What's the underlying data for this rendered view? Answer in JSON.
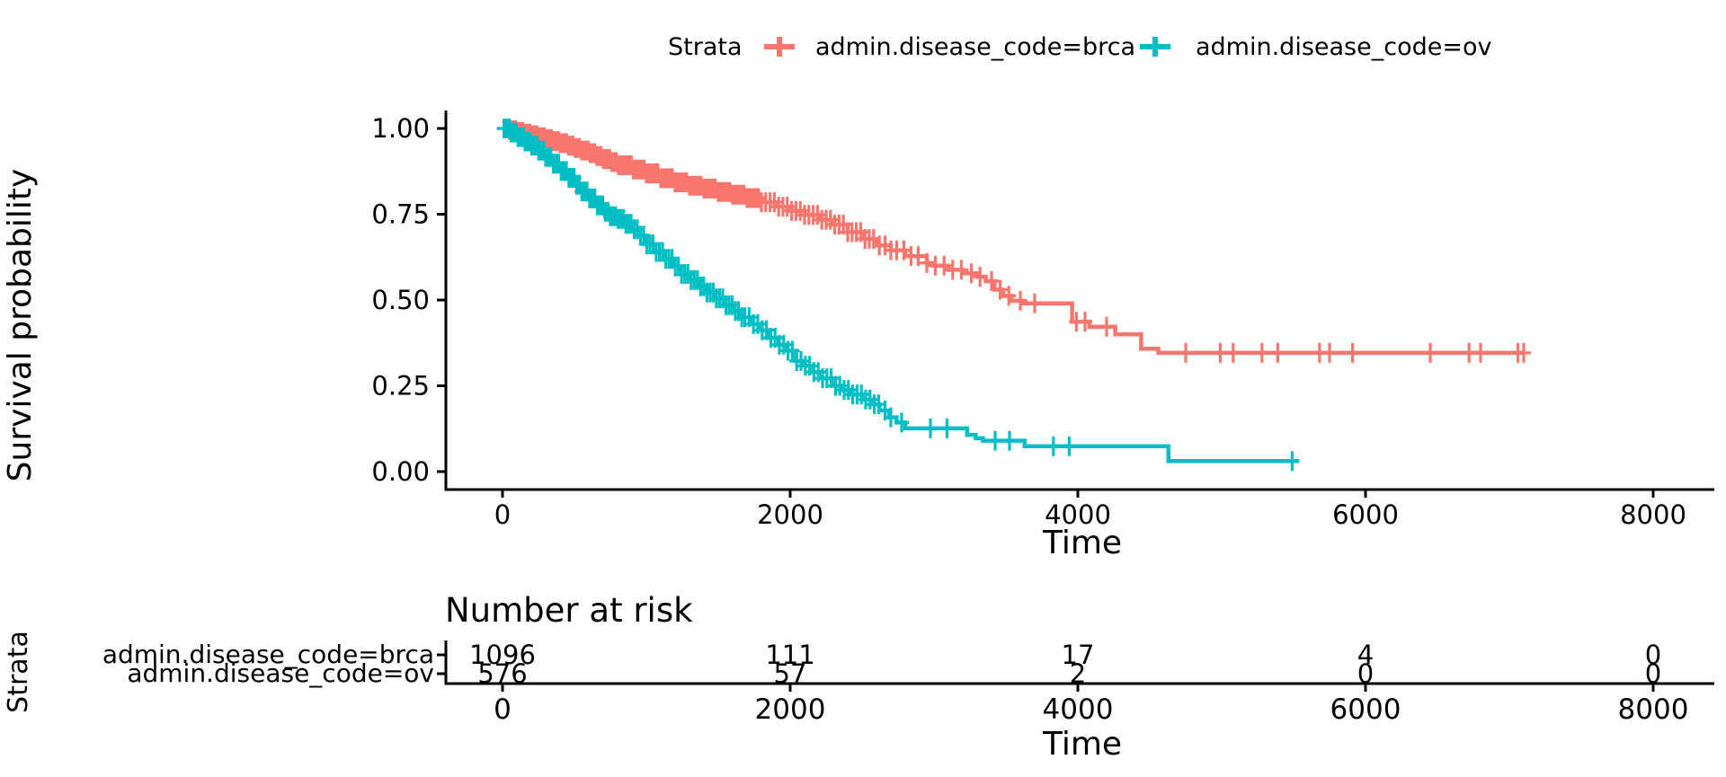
{
  "chart_data": {
    "type": "line",
    "subtype": "kaplan_meier_survival",
    "title": "",
    "xlabel": "Time",
    "ylabel": "Survival probability",
    "grid": false,
    "legend_position": "top",
    "legend_title": "Strata",
    "xlim": [
      -400,
      8450
    ],
    "ylim": [
      -0.05,
      1.05
    ],
    "xticks": {
      "values": [
        0,
        2000,
        4000,
        6000,
        8000
      ],
      "labels": [
        "0",
        "2000",
        "4000",
        "6000",
        "8000"
      ]
    },
    "yticks": {
      "values": [
        0,
        0.25,
        0.5,
        0.75,
        1
      ],
      "labels": [
        "0.00",
        "0.25",
        "0.50",
        "0.75",
        "1.00"
      ]
    },
    "censor_shape": "plus",
    "series": [
      {
        "name": "admin.disease_code=brca",
        "color": "#F8766D",
        "points": [
          [
            0,
            1.0
          ],
          [
            50,
            0.995
          ],
          [
            100,
            0.99
          ],
          [
            150,
            0.985
          ],
          [
            200,
            0.98
          ],
          [
            250,
            0.9745
          ],
          [
            300,
            0.969
          ],
          [
            350,
            0.963
          ],
          [
            400,
            0.957
          ],
          [
            450,
            0.95
          ],
          [
            500,
            0.943
          ],
          [
            550,
            0.9355
          ],
          [
            600,
            0.928
          ],
          [
            650,
            0.92
          ],
          [
            700,
            0.911
          ],
          [
            750,
            0.902
          ],
          [
            800,
            0.893
          ],
          [
            900,
            0.88
          ],
          [
            1000,
            0.869
          ],
          [
            1100,
            0.855
          ],
          [
            1200,
            0.843
          ],
          [
            1300,
            0.833
          ],
          [
            1400,
            0.825
          ],
          [
            1500,
            0.815
          ],
          [
            1600,
            0.807
          ],
          [
            1700,
            0.797
          ],
          [
            1800,
            0.785
          ],
          [
            1900,
            0.772
          ],
          [
            2000,
            0.76
          ],
          [
            2100,
            0.748
          ],
          [
            2200,
            0.734
          ],
          [
            2300,
            0.72
          ],
          [
            2400,
            0.698
          ],
          [
            2500,
            0.678
          ],
          [
            2600,
            0.659
          ],
          [
            2700,
            0.645
          ],
          [
            2800,
            0.628
          ],
          [
            2950,
            0.608
          ],
          [
            3000,
            0.6
          ],
          [
            3100,
            0.588
          ],
          [
            3200,
            0.578
          ],
          [
            3300,
            0.568
          ],
          [
            3360,
            0.555
          ],
          [
            3420,
            0.53
          ],
          [
            3480,
            0.512
          ],
          [
            3540,
            0.498
          ],
          [
            3620,
            0.49
          ],
          [
            3960,
            0.437
          ],
          [
            4080,
            0.422
          ],
          [
            4260,
            0.4
          ],
          [
            4440,
            0.358
          ],
          [
            4560,
            0.346
          ],
          [
            7100,
            0.346
          ]
        ],
        "censor_times": [
          10,
          20,
          30,
          40,
          50,
          60,
          70,
          80,
          90,
          100,
          110,
          120,
          130,
          140,
          150,
          160,
          170,
          180,
          190,
          200,
          210,
          220,
          230,
          240,
          250,
          260,
          270,
          280,
          290,
          300,
          310,
          320,
          330,
          340,
          350,
          360,
          370,
          380,
          390,
          400,
          415,
          430,
          445,
          460,
          475,
          490,
          505,
          520,
          535,
          550,
          565,
          580,
          595,
          610,
          625,
          640,
          655,
          670,
          685,
          700,
          715,
          730,
          745,
          760,
          775,
          790,
          805,
          820,
          835,
          850,
          865,
          880,
          895,
          910,
          925,
          940,
          955,
          970,
          985,
          1000,
          1020,
          1040,
          1060,
          1080,
          1100,
          1120,
          1140,
          1160,
          1180,
          1200,
          1220,
          1240,
          1260,
          1280,
          1300,
          1320,
          1340,
          1360,
          1380,
          1400,
          1420,
          1440,
          1460,
          1480,
          1500,
          1520,
          1540,
          1560,
          1580,
          1600,
          1620,
          1640,
          1660,
          1680,
          1700,
          1720,
          1740,
          1760,
          1780,
          1800,
          1830,
          1860,
          1890,
          1920,
          1950,
          1980,
          2010,
          2040,
          2070,
          2100,
          2130,
          2160,
          2190,
          2220,
          2250,
          2280,
          2310,
          2340,
          2370,
          2400,
          2430,
          2460,
          2490,
          2520,
          2550,
          2580,
          2620,
          2660,
          2700,
          2740,
          2790,
          2840,
          2890,
          2950,
          3010,
          3070,
          3130,
          3190,
          3260,
          3320,
          3400,
          3460,
          3520,
          3600,
          3700,
          3990,
          4050,
          4200,
          4750,
          4990,
          5080,
          5280,
          5390,
          5680,
          5750,
          5910,
          6450,
          6720,
          6800,
          7060,
          7100
        ]
      },
      {
        "name": "admin.disease_code=ov",
        "color": "#00BFC4",
        "points": [
          [
            0,
            1.0
          ],
          [
            50,
            0.988
          ],
          [
            100,
            0.975
          ],
          [
            150,
            0.962
          ],
          [
            200,
            0.95
          ],
          [
            250,
            0.935
          ],
          [
            300,
            0.917
          ],
          [
            350,
            0.897
          ],
          [
            400,
            0.876
          ],
          [
            450,
            0.856
          ],
          [
            500,
            0.836
          ],
          [
            550,
            0.816
          ],
          [
            600,
            0.796
          ],
          [
            650,
            0.776
          ],
          [
            700,
            0.757
          ],
          [
            750,
            0.744
          ],
          [
            800,
            0.736
          ],
          [
            850,
            0.722
          ],
          [
            900,
            0.706
          ],
          [
            950,
            0.688
          ],
          [
            1000,
            0.662
          ],
          [
            1060,
            0.64
          ],
          [
            1120,
            0.62
          ],
          [
            1180,
            0.598
          ],
          [
            1240,
            0.576
          ],
          [
            1300,
            0.558
          ],
          [
            1360,
            0.54
          ],
          [
            1420,
            0.522
          ],
          [
            1480,
            0.505
          ],
          [
            1540,
            0.485
          ],
          [
            1600,
            0.468
          ],
          [
            1660,
            0.45
          ],
          [
            1720,
            0.43
          ],
          [
            1780,
            0.412
          ],
          [
            1850,
            0.39
          ],
          [
            1920,
            0.37
          ],
          [
            1980,
            0.352
          ],
          [
            2040,
            0.322
          ],
          [
            2100,
            0.308
          ],
          [
            2160,
            0.29
          ],
          [
            2220,
            0.272
          ],
          [
            2290,
            0.25
          ],
          [
            2360,
            0.238
          ],
          [
            2430,
            0.225
          ],
          [
            2500,
            0.21
          ],
          [
            2560,
            0.196
          ],
          [
            2620,
            0.178
          ],
          [
            2690,
            0.158
          ],
          [
            2740,
            0.143
          ],
          [
            2800,
            0.126
          ],
          [
            3230,
            0.107
          ],
          [
            3290,
            0.097
          ],
          [
            3340,
            0.09
          ],
          [
            3630,
            0.074
          ],
          [
            4630,
            0.031
          ],
          [
            5538,
            0.031
          ]
        ],
        "censor_times": [
          12,
          24,
          36,
          48,
          60,
          72,
          84,
          96,
          108,
          120,
          132,
          144,
          156,
          168,
          180,
          192,
          204,
          216,
          228,
          240,
          252,
          264,
          276,
          288,
          300,
          318,
          336,
          354,
          372,
          390,
          408,
          426,
          444,
          462,
          480,
          498,
          516,
          534,
          552,
          570,
          588,
          606,
          624,
          642,
          660,
          678,
          696,
          714,
          732,
          750,
          768,
          786,
          804,
          822,
          840,
          858,
          876,
          894,
          915,
          937,
          959,
          981,
          1003,
          1025,
          1047,
          1069,
          1091,
          1113,
          1135,
          1157,
          1179,
          1201,
          1223,
          1245,
          1267,
          1289,
          1311,
          1333,
          1355,
          1377,
          1399,
          1421,
          1443,
          1465,
          1487,
          1509,
          1531,
          1553,
          1575,
          1597,
          1619,
          1641,
          1663,
          1685,
          1715,
          1745,
          1775,
          1805,
          1835,
          1865,
          1895,
          1925,
          1955,
          1985,
          2015,
          2045,
          2075,
          2105,
          2135,
          2165,
          2195,
          2225,
          2255,
          2285,
          2315,
          2345,
          2375,
          2405,
          2435,
          2465,
          2495,
          2525,
          2555,
          2585,
          2615,
          2660,
          2700,
          2775,
          2975,
          3090,
          3425,
          3525,
          3830,
          3940,
          5490
        ]
      }
    ],
    "risk_table": {
      "title": "Number at risk",
      "axis_title": "Strata",
      "xlabel": "Time",
      "times": [
        0,
        2000,
        4000,
        6000,
        8000
      ],
      "xtick_labels": [
        "0",
        "2000",
        "4000",
        "6000",
        "8000"
      ],
      "rows": [
        {
          "label": "admin.disease_code=brca",
          "color": "#F8766D",
          "values": [
            "1096",
            "111",
            "17",
            "4",
            "0"
          ]
        },
        {
          "label": "admin.disease_code=ov",
          "color": "#00BFC4",
          "values": [
            "576",
            "57",
            "2",
            "0",
            "0"
          ]
        }
      ]
    }
  }
}
